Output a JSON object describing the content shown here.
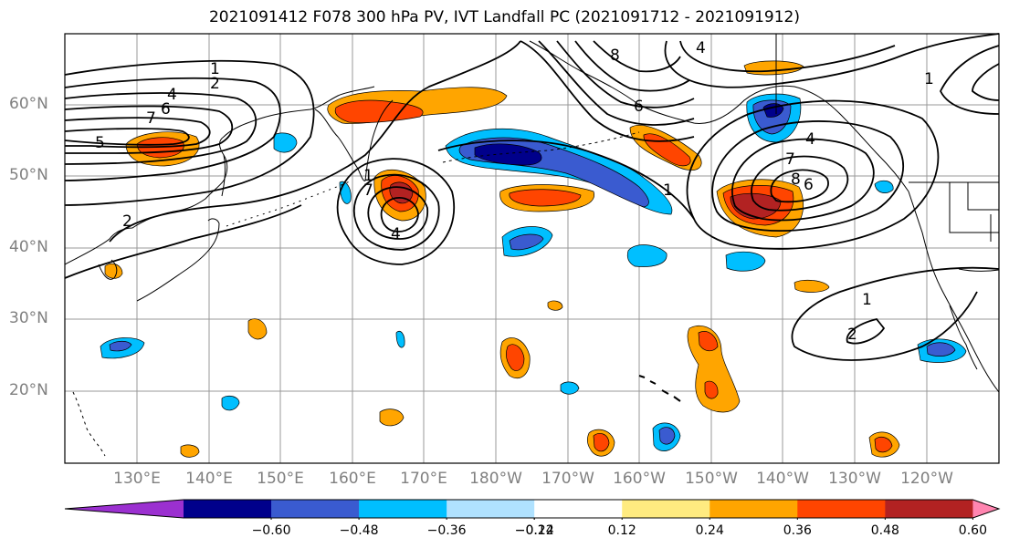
{
  "title": "2021091412 F078 300 hPa PV, IVT Landfall PC (2021091712 - 2021091912)",
  "lat_labels": [
    "60°N",
    "50°N",
    "40°N",
    "30°N",
    "20°N"
  ],
  "lon_labels": [
    "130°E",
    "140°E",
    "150°E",
    "160°E",
    "170°E",
    "180°W",
    "170°W",
    "160°W",
    "150°W",
    "140°W",
    "130°W",
    "120°W"
  ],
  "colorbar": {
    "tick_labels": [
      "−0.60",
      "−0.48",
      "−0.36",
      "−0.24",
      "−0.12",
      "0.12",
      "0.24",
      "0.36",
      "0.48",
      "0.60"
    ],
    "colors": [
      "#9b30d0",
      "#00008b",
      "#3a5bd0",
      "#00bfff",
      "#b0e2ff",
      "#ffffff",
      "#ffeb80",
      "#ffa500",
      "#ff4500",
      "#b22222",
      "#ff85b0"
    ]
  },
  "contour_labels": {
    "west_low": [
      "1",
      "2",
      "4",
      "6",
      "7",
      "5",
      "2"
    ],
    "central_low": [
      "1",
      "7",
      "4"
    ],
    "alaska_low": [
      "4",
      "7",
      "8",
      "6",
      "1"
    ],
    "north": [
      "4",
      "6",
      "8",
      "1"
    ],
    "southeast": [
      "1",
      "2"
    ]
  },
  "colors": {
    "land": "#000000",
    "grid": "#999999",
    "contour": "#000000",
    "axis_label": "#808080"
  }
}
